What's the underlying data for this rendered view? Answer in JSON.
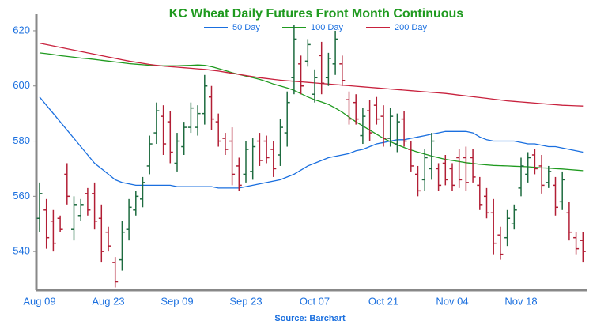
{
  "chart_data": {
    "type": "ohlc",
    "title": "KC Wheat Daily Futures Front Month Continuous",
    "source": "Source: Barchart",
    "categories": [
      "Aug 09",
      null,
      null,
      null,
      null,
      null,
      null,
      null,
      null,
      null,
      "Aug 23",
      null,
      null,
      null,
      null,
      null,
      null,
      null,
      null,
      null,
      "Sep 09",
      null,
      null,
      null,
      null,
      null,
      null,
      null,
      null,
      null,
      "Sep 23",
      null,
      null,
      null,
      null,
      null,
      null,
      null,
      null,
      null,
      "Oct 07",
      null,
      null,
      null,
      null,
      null,
      null,
      null,
      null,
      null,
      "Oct 21",
      null,
      null,
      null,
      null,
      null,
      null,
      null,
      null,
      null,
      "Nov 04",
      null,
      null,
      null,
      null,
      null,
      null,
      null,
      null,
      null,
      "Nov 18",
      null,
      null,
      null,
      null,
      null,
      null,
      null,
      null,
      null
    ],
    "open": [
      552,
      555,
      551,
      552,
      568,
      548,
      553,
      561,
      561,
      552,
      547,
      536,
      537,
      548,
      555,
      559,
      571,
      583,
      589,
      587,
      572,
      578,
      585,
      585,
      590,
      596,
      587,
      581,
      580,
      571,
      568,
      569,
      580,
      580,
      577,
      575,
      583,
      603,
      608,
      609,
      597,
      611,
      603,
      608,
      608,
      595,
      594,
      582,
      591,
      593,
      589,
      581,
      579,
      588,
      577,
      568,
      566,
      570,
      570,
      572,
      570,
      574,
      574,
      574,
      564,
      560,
      554,
      546,
      545,
      550,
      563,
      568,
      575,
      571,
      565,
      564,
      558,
      554,
      545,
      544
    ],
    "high": [
      565,
      559,
      555,
      553,
      572,
      560,
      559,
      563,
      565,
      557,
      549,
      538,
      551,
      559,
      562,
      567,
      582,
      594,
      593,
      591,
      583,
      587,
      594,
      593,
      604,
      600,
      590,
      583,
      585,
      574,
      580,
      581,
      583,
      582,
      580,
      588,
      598,
      622,
      611,
      617,
      606,
      616,
      612,
      620,
      611,
      598,
      597,
      592,
      595,
      596,
      593,
      592,
      590,
      591,
      580,
      571,
      577,
      583,
      572,
      575,
      572,
      577,
      578,
      577,
      567,
      563,
      559,
      549,
      555,
      557,
      574,
      576,
      577,
      575,
      571,
      567,
      569,
      558,
      547,
      547
    ],
    "low": [
      547,
      541,
      540,
      547,
      557,
      544,
      551,
      553,
      548,
      536,
      540,
      527,
      533,
      544,
      553,
      556,
      568,
      579,
      575,
      572,
      569,
      575,
      583,
      582,
      586,
      584,
      578,
      575,
      564,
      562,
      565,
      566,
      571,
      572,
      567,
      571,
      578,
      597,
      597,
      607,
      594,
      597,
      600,
      604,
      600,
      586,
      586,
      579,
      580,
      586,
      578,
      578,
      576,
      578,
      569,
      560,
      562,
      566,
      562,
      564,
      562,
      563,
      562,
      565,
      555,
      552,
      539,
      537,
      542,
      548,
      560,
      565,
      568,
      561,
      563,
      553,
      555,
      544,
      539,
      536
    ],
    "close": [
      561,
      545,
      543,
      548,
      560,
      557,
      557,
      555,
      551,
      540,
      542,
      529,
      547,
      556,
      560,
      565,
      579,
      591,
      579,
      576,
      580,
      585,
      592,
      590,
      600,
      588,
      580,
      577,
      568,
      564,
      577,
      578,
      573,
      574,
      570,
      585,
      594,
      617,
      600,
      615,
      603,
      601,
      610,
      617,
      602,
      588,
      588,
      589,
      583,
      588,
      581,
      589,
      587,
      580,
      571,
      562,
      574,
      580,
      564,
      566,
      564,
      566,
      565,
      567,
      557,
      554,
      543,
      539,
      552,
      555,
      571,
      574,
      570,
      564,
      569,
      556,
      566,
      547,
      541,
      540
    ],
    "up_color": "#1d6b3f",
    "down_color": "#b21e35",
    "series": [
      {
        "name": "50 Day",
        "color": "#1a6fdf",
        "values": [
          596,
          593,
          590,
          587,
          584,
          581,
          578,
          575,
          572,
          570,
          568,
          566,
          565,
          564.5,
          564,
          564,
          564,
          564,
          564,
          564,
          563.5,
          563.5,
          563.5,
          563.5,
          563.5,
          563.5,
          563,
          563,
          563,
          563,
          563.5,
          564,
          564.5,
          565,
          565.5,
          566,
          567,
          568,
          569.5,
          571,
          572,
          573,
          574,
          574.5,
          575,
          575.5,
          576.5,
          577,
          578,
          579,
          579.5,
          580,
          580.5,
          580.5,
          581,
          581.5,
          582,
          582.5,
          583,
          583.5,
          583.5,
          583.5,
          583.5,
          583,
          581.5,
          580.5,
          580,
          580,
          580,
          580,
          579.5,
          579,
          579,
          578.5,
          578,
          578,
          577.5,
          577,
          576.5,
          576
        ]
      },
      {
        "name": "100 Day",
        "color": "#1f9a1f",
        "values": [
          612,
          611.7,
          611.4,
          611,
          610.7,
          610.4,
          610.1,
          609.9,
          609.6,
          609.3,
          609,
          608.7,
          608.4,
          608.1,
          607.9,
          607.7,
          607.5,
          607.4,
          607.3,
          607.3,
          607.3,
          607.4,
          607.5,
          607.6,
          607.5,
          607,
          606.3,
          605.6,
          604.8,
          604.2,
          603.6,
          603,
          602.4,
          601.6,
          600.7,
          600,
          599.3,
          598.4,
          597.2,
          596,
          595,
          594.2,
          593.3,
          592,
          590.5,
          588.7,
          587,
          585.5,
          584,
          582.5,
          581,
          579.8,
          578.7,
          577.7,
          576.8,
          576,
          575.3,
          574.6,
          574,
          573.4,
          573,
          572.6,
          572.2,
          571.9,
          571.6,
          571.4,
          571.2,
          571.1,
          571,
          570.9,
          570.8,
          570.7,
          570.5,
          570.3,
          570.2,
          570,
          569.9,
          569.7,
          569.5,
          569.3
        ]
      },
      {
        "name": "200 Day",
        "color": "#c8213d",
        "values": [
          615.5,
          615,
          614.5,
          614,
          613.5,
          613,
          612.5,
          612,
          611.5,
          611,
          610.5,
          610,
          609.5,
          609,
          608.6,
          608.2,
          607.8,
          607.5,
          607.2,
          607,
          606.8,
          606.6,
          606.4,
          606.2,
          606,
          605.7,
          605.4,
          605,
          604.6,
          604.2,
          603.8,
          603.4,
          603,
          602.7,
          602.4,
          602.1,
          601.9,
          601.7,
          601.5,
          601.3,
          601.1,
          600.9,
          600.7,
          600.5,
          600.3,
          600.1,
          599.9,
          599.7,
          599.5,
          599.3,
          599.1,
          598.9,
          598.7,
          598.5,
          598.3,
          598.1,
          597.9,
          597.7,
          597.5,
          597.3,
          597,
          596.7,
          596.4,
          596.1,
          595.8,
          595.5,
          595.2,
          594.9,
          594.6,
          594.4,
          594.2,
          594,
          593.8,
          593.6,
          593.4,
          593.2,
          593,
          592.9,
          592.8,
          592.7
        ]
      }
    ],
    "ylim": [
      526,
      626
    ],
    "yticks": [
      540,
      560,
      580,
      600,
      620
    ]
  }
}
